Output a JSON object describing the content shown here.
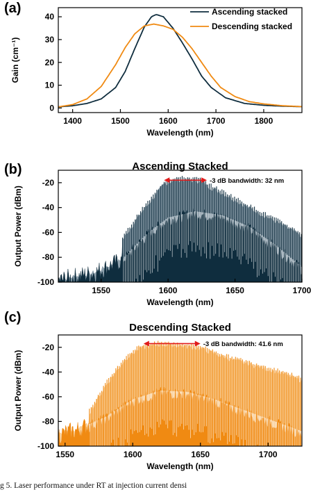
{
  "colors": {
    "ascending": "#0f2d3e",
    "ascending_light": "#7a8f9e",
    "descending": "#f08a12",
    "descending_light": "#f7c07a",
    "arrow": "#e01b1b"
  },
  "caption": "g    5.    Laser performance under RT at injection current densi",
  "chart_data": [
    {
      "panel": "(a)",
      "type": "line",
      "title": "",
      "xlabel": "Wavelength (nm)",
      "ylabel": "Gain (cm⁻¹)",
      "xlim": [
        1370,
        1880
      ],
      "ylim": [
        -2,
        44
      ],
      "xticks": [
        1400,
        1500,
        1600,
        1700,
        1800
      ],
      "yticks": [
        0,
        10,
        20,
        30,
        40
      ],
      "legend_position": "top-right",
      "series": [
        {
          "name": "Ascending stacked",
          "x": [
            1370,
            1400,
            1430,
            1460,
            1490,
            1510,
            1530,
            1550,
            1565,
            1575,
            1590,
            1610,
            1630,
            1650,
            1670,
            1690,
            1720,
            1760,
            1800,
            1840,
            1880
          ],
          "y": [
            0.5,
            1.0,
            2.0,
            4.0,
            9.0,
            16.0,
            26.0,
            35.5,
            40.0,
            41.0,
            40.0,
            35.0,
            28.5,
            21.5,
            14.0,
            9.0,
            4.5,
            2.0,
            1.2,
            0.8,
            0.6
          ]
        },
        {
          "name": "Descending stacked",
          "x": [
            1370,
            1400,
            1430,
            1460,
            1490,
            1510,
            1530,
            1550,
            1570,
            1590,
            1610,
            1630,
            1650,
            1670,
            1690,
            1710,
            1740,
            1770,
            1800,
            1840,
            1880
          ],
          "y": [
            0.5,
            1.5,
            4.0,
            9.5,
            19.0,
            26.5,
            32.5,
            36.0,
            36.8,
            36.0,
            34.5,
            31.0,
            26.0,
            20.0,
            14.0,
            9.0,
            5.0,
            2.8,
            1.8,
            1.0,
            0.6
          ]
        }
      ]
    },
    {
      "panel": "(b)",
      "type": "line",
      "title": "Ascending Stacked",
      "xlabel": "Wavelength (nm)",
      "ylabel": "Output Power (dBm)",
      "xlim": [
        1518,
        1700
      ],
      "ylim": [
        -100,
        -10
      ],
      "xticks": [
        1550,
        1600,
        1650,
        1700
      ],
      "yticks": [
        -100,
        -80,
        -60,
        -40,
        -20
      ],
      "lasing_modes": {
        "start": 1566,
        "end": 1700,
        "spacing": 1.35
      },
      "peak_envelope": {
        "x": [
          1566,
          1580,
          1590,
          1597,
          1605,
          1615,
          1625,
          1630,
          1645,
          1660,
          1680,
          1700
        ],
        "y": [
          -65,
          -43,
          -30,
          -20,
          -17,
          -17,
          -18,
          -22,
          -30,
          -39,
          -50,
          -62
        ]
      },
      "noise_floor": {
        "x": [
          1518,
          1545,
          1565,
          1585,
          1600,
          1620,
          1640,
          1660,
          1680,
          1700
        ],
        "y": [
          -98,
          -92,
          -82,
          -60,
          -48,
          -43,
          -46,
          -55,
          -70,
          -88
        ]
      },
      "annotation": {
        "text": "-3 dB bandwidth: 32 nm",
        "from": 1597,
        "to": 1629,
        "level": -18
      }
    },
    {
      "panel": "(c)",
      "type": "line",
      "title": "Descending Stacked",
      "xlabel": "Wavelength (nm)",
      "ylabel": "Output Power (dBm)",
      "xlim": [
        1545,
        1725
      ],
      "ylim": [
        -100,
        -10
      ],
      "xticks": [
        1550,
        1600,
        1650,
        1700
      ],
      "yticks": [
        -100,
        -80,
        -60,
        -40,
        -20
      ],
      "lasing_modes": {
        "start": 1568,
        "end": 1725,
        "spacing": 1.3
      },
      "peak_envelope": {
        "x": [
          1568,
          1580,
          1595,
          1605,
          1620,
          1635,
          1650,
          1670,
          1690,
          1710,
          1725
        ],
        "y": [
          -72,
          -50,
          -28,
          -20,
          -17,
          -18,
          -20,
          -28,
          -34,
          -40,
          -46
        ]
      },
      "noise_floor": {
        "x": [
          1545,
          1560,
          1580,
          1600,
          1620,
          1640,
          1660,
          1680,
          1700,
          1725
        ],
        "y": [
          -90,
          -86,
          -76,
          -62,
          -55,
          -56,
          -62,
          -70,
          -78,
          -88
        ]
      },
      "annotation": {
        "text": "-3 dB bandwidth: 41.6 nm",
        "from": 1608,
        "to": 1650,
        "level": -17
      }
    }
  ]
}
